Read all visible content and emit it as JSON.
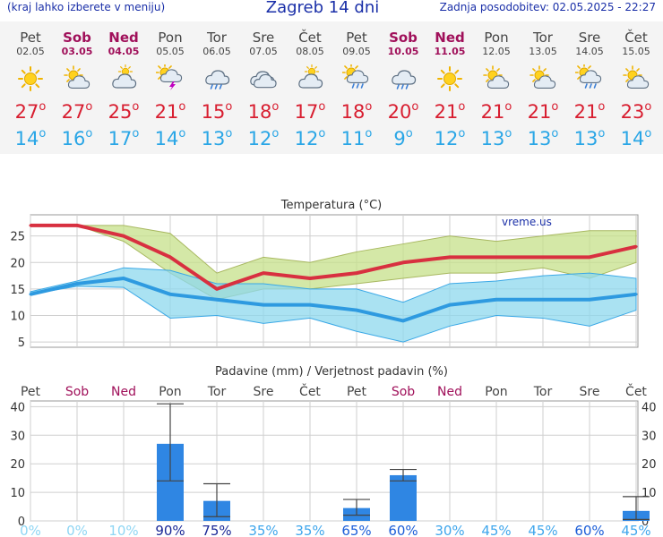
{
  "header": {
    "left_note": "(kraj lahko izberete v meniju)",
    "title": "Zagreb 14 dni",
    "updated": "Zadnja posodobitev: 02.05.2025 - 22:27"
  },
  "days": [
    {
      "name": "Pet",
      "date": "02.05",
      "weekend": false,
      "icon": "sun-icon",
      "tmax": "27",
      "tmin": "14"
    },
    {
      "name": "Sob",
      "date": "03.05",
      "weekend": true,
      "icon": "sun-cloud-icon",
      "tmax": "27",
      "tmin": "16"
    },
    {
      "name": "Ned",
      "date": "04.05",
      "weekend": true,
      "icon": "cloud-sun-icon",
      "tmax": "25",
      "tmin": "17"
    },
    {
      "name": "Pon",
      "date": "05.05",
      "weekend": false,
      "icon": "thunderstorm-icon",
      "tmax": "21",
      "tmin": "14"
    },
    {
      "name": "Tor",
      "date": "06.05",
      "weekend": false,
      "icon": "rain-cloud-icon",
      "tmax": "15",
      "tmin": "13"
    },
    {
      "name": "Sre",
      "date": "07.05",
      "weekend": false,
      "icon": "cloud-icon",
      "tmax": "18",
      "tmin": "12"
    },
    {
      "name": "Čet",
      "date": "08.05",
      "weekend": false,
      "icon": "cloud-sun-icon",
      "tmax": "17",
      "tmin": "12"
    },
    {
      "name": "Pet",
      "date": "09.05",
      "weekend": false,
      "icon": "sun-rain-icon",
      "tmax": "18",
      "tmin": "11"
    },
    {
      "name": "Sob",
      "date": "10.05",
      "weekend": true,
      "icon": "rain-cloud-icon",
      "tmax": "20",
      "tmin": "9"
    },
    {
      "name": "Ned",
      "date": "11.05",
      "weekend": true,
      "icon": "sun-icon",
      "tmax": "21",
      "tmin": "12"
    },
    {
      "name": "Pon",
      "date": "12.05",
      "weekend": false,
      "icon": "sun-cloud-icon",
      "tmax": "21",
      "tmin": "13"
    },
    {
      "name": "Tor",
      "date": "13.05",
      "weekend": false,
      "icon": "sun-cloud-icon",
      "tmax": "21",
      "tmin": "13"
    },
    {
      "name": "Sre",
      "date": "14.05",
      "weekend": false,
      "icon": "sun-rain-icon",
      "tmax": "21",
      "tmin": "13"
    },
    {
      "name": "Čet",
      "date": "15.05",
      "weekend": false,
      "icon": "sun-cloud-icon",
      "tmax": "23",
      "tmin": "14"
    }
  ],
  "chart_data": [
    {
      "type": "line",
      "title": "Temperatura (°C)",
      "watermark": "vreme.us",
      "x": [
        "02.05",
        "03.05",
        "04.05",
        "05.05",
        "06.05",
        "07.05",
        "08.05",
        "09.05",
        "10.05",
        "11.05",
        "12.05",
        "13.05",
        "14.05",
        "15.05"
      ],
      "ylim": [
        4,
        29
      ],
      "yticks": [
        5,
        10,
        15,
        20,
        25
      ],
      "grid": true,
      "series": [
        {
          "values": [
            27,
            27,
            25,
            21,
            15,
            18,
            17,
            18,
            20,
            21,
            21,
            21,
            21,
            23
          ],
          "color": "#d83040",
          "band_low": [
            27,
            27,
            24,
            18,
            13,
            15,
            15,
            16,
            17,
            18,
            18,
            19,
            17,
            20
          ],
          "band_high": [
            27,
            27,
            27,
            25.5,
            18,
            21,
            20,
            22,
            23.5,
            25,
            24,
            25,
            26,
            26
          ],
          "band_color": "#c6e08a"
        },
        {
          "values": [
            14,
            16,
            17,
            14,
            13,
            12,
            12,
            11,
            9,
            12,
            13,
            13,
            13,
            14
          ],
          "color": "#2e9ae0",
          "band_low": [
            14,
            15.5,
            15.3,
            9.5,
            10,
            8.5,
            9.5,
            7,
            5,
            8,
            10,
            9.5,
            8,
            11
          ],
          "band_high": [
            14.5,
            16.5,
            19,
            18.5,
            16,
            16,
            15,
            15,
            12.5,
            16,
            16.5,
            17.5,
            18,
            17
          ],
          "band_color": "#8ed8ee"
        }
      ]
    },
    {
      "type": "bar",
      "title": "Padavine (mm) / Verjetnost padavin (%)",
      "categories": [
        "Pet",
        "Sob",
        "Ned",
        "Pon",
        "Tor",
        "Sre",
        "Čet",
        "Pet",
        "Sob",
        "Ned",
        "Pon",
        "Tor",
        "Sre",
        "Čet"
      ],
      "weekend": [
        false,
        true,
        true,
        false,
        false,
        false,
        false,
        false,
        true,
        true,
        false,
        false,
        false,
        false
      ],
      "values": [
        0,
        0,
        0,
        27,
        7,
        0,
        0,
        4.5,
        16,
        0,
        0,
        0,
        0,
        3.5
      ],
      "error_low": [
        null,
        null,
        null,
        14,
        1.5,
        null,
        null,
        2,
        14,
        null,
        null,
        null,
        null,
        0.5
      ],
      "error_high": [
        null,
        null,
        null,
        41,
        13,
        null,
        null,
        7.5,
        18,
        null,
        null,
        null,
        null,
        8.5
      ],
      "probability": [
        "0%",
        "0%",
        "10%",
        "90%",
        "75%",
        "35%",
        "35%",
        "65%",
        "60%",
        "30%",
        "45%",
        "45%",
        "60%",
        "45%"
      ],
      "ylim": [
        0,
        42
      ],
      "yticks": [
        0,
        10,
        20,
        30,
        40
      ],
      "bar_color": "#2f86e3",
      "grid": true
    }
  ]
}
